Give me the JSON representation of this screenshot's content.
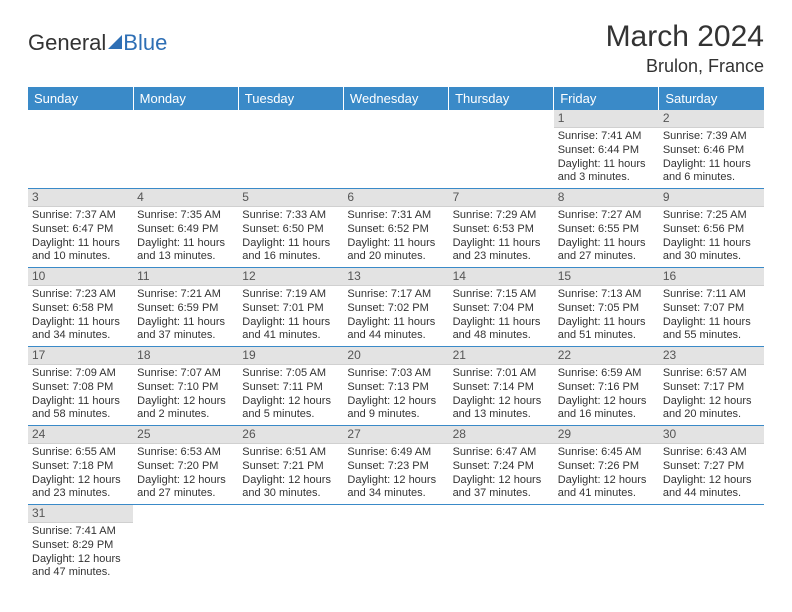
{
  "logo": {
    "part1": "General",
    "part2": "Blue"
  },
  "title": "March 2024",
  "location": "Brulon, France",
  "colors": {
    "headerBg": "#3a8ac8",
    "headerText": "#ffffff",
    "dayNumBg": "#e3e3e3",
    "rowBorder": "#3a8ac8",
    "brandBlue": "#2e6fb5",
    "text": "#333333"
  },
  "weekdays": [
    "Sunday",
    "Monday",
    "Tuesday",
    "Wednesday",
    "Thursday",
    "Friday",
    "Saturday"
  ],
  "weeks": [
    [
      null,
      null,
      null,
      null,
      null,
      {
        "n": "1",
        "sr": "Sunrise: 7:41 AM",
        "ss": "Sunset: 6:44 PM",
        "d1": "Daylight: 11 hours",
        "d2": "and 3 minutes."
      },
      {
        "n": "2",
        "sr": "Sunrise: 7:39 AM",
        "ss": "Sunset: 6:46 PM",
        "d1": "Daylight: 11 hours",
        "d2": "and 6 minutes."
      }
    ],
    [
      {
        "n": "3",
        "sr": "Sunrise: 7:37 AM",
        "ss": "Sunset: 6:47 PM",
        "d1": "Daylight: 11 hours",
        "d2": "and 10 minutes."
      },
      {
        "n": "4",
        "sr": "Sunrise: 7:35 AM",
        "ss": "Sunset: 6:49 PM",
        "d1": "Daylight: 11 hours",
        "d2": "and 13 minutes."
      },
      {
        "n": "5",
        "sr": "Sunrise: 7:33 AM",
        "ss": "Sunset: 6:50 PM",
        "d1": "Daylight: 11 hours",
        "d2": "and 16 minutes."
      },
      {
        "n": "6",
        "sr": "Sunrise: 7:31 AM",
        "ss": "Sunset: 6:52 PM",
        "d1": "Daylight: 11 hours",
        "d2": "and 20 minutes."
      },
      {
        "n": "7",
        "sr": "Sunrise: 7:29 AM",
        "ss": "Sunset: 6:53 PM",
        "d1": "Daylight: 11 hours",
        "d2": "and 23 minutes."
      },
      {
        "n": "8",
        "sr": "Sunrise: 7:27 AM",
        "ss": "Sunset: 6:55 PM",
        "d1": "Daylight: 11 hours",
        "d2": "and 27 minutes."
      },
      {
        "n": "9",
        "sr": "Sunrise: 7:25 AM",
        "ss": "Sunset: 6:56 PM",
        "d1": "Daylight: 11 hours",
        "d2": "and 30 minutes."
      }
    ],
    [
      {
        "n": "10",
        "sr": "Sunrise: 7:23 AM",
        "ss": "Sunset: 6:58 PM",
        "d1": "Daylight: 11 hours",
        "d2": "and 34 minutes."
      },
      {
        "n": "11",
        "sr": "Sunrise: 7:21 AM",
        "ss": "Sunset: 6:59 PM",
        "d1": "Daylight: 11 hours",
        "d2": "and 37 minutes."
      },
      {
        "n": "12",
        "sr": "Sunrise: 7:19 AM",
        "ss": "Sunset: 7:01 PM",
        "d1": "Daylight: 11 hours",
        "d2": "and 41 minutes."
      },
      {
        "n": "13",
        "sr": "Sunrise: 7:17 AM",
        "ss": "Sunset: 7:02 PM",
        "d1": "Daylight: 11 hours",
        "d2": "and 44 minutes."
      },
      {
        "n": "14",
        "sr": "Sunrise: 7:15 AM",
        "ss": "Sunset: 7:04 PM",
        "d1": "Daylight: 11 hours",
        "d2": "and 48 minutes."
      },
      {
        "n": "15",
        "sr": "Sunrise: 7:13 AM",
        "ss": "Sunset: 7:05 PM",
        "d1": "Daylight: 11 hours",
        "d2": "and 51 minutes."
      },
      {
        "n": "16",
        "sr": "Sunrise: 7:11 AM",
        "ss": "Sunset: 7:07 PM",
        "d1": "Daylight: 11 hours",
        "d2": "and 55 minutes."
      }
    ],
    [
      {
        "n": "17",
        "sr": "Sunrise: 7:09 AM",
        "ss": "Sunset: 7:08 PM",
        "d1": "Daylight: 11 hours",
        "d2": "and 58 minutes."
      },
      {
        "n": "18",
        "sr": "Sunrise: 7:07 AM",
        "ss": "Sunset: 7:10 PM",
        "d1": "Daylight: 12 hours",
        "d2": "and 2 minutes."
      },
      {
        "n": "19",
        "sr": "Sunrise: 7:05 AM",
        "ss": "Sunset: 7:11 PM",
        "d1": "Daylight: 12 hours",
        "d2": "and 5 minutes."
      },
      {
        "n": "20",
        "sr": "Sunrise: 7:03 AM",
        "ss": "Sunset: 7:13 PM",
        "d1": "Daylight: 12 hours",
        "d2": "and 9 minutes."
      },
      {
        "n": "21",
        "sr": "Sunrise: 7:01 AM",
        "ss": "Sunset: 7:14 PM",
        "d1": "Daylight: 12 hours",
        "d2": "and 13 minutes."
      },
      {
        "n": "22",
        "sr": "Sunrise: 6:59 AM",
        "ss": "Sunset: 7:16 PM",
        "d1": "Daylight: 12 hours",
        "d2": "and 16 minutes."
      },
      {
        "n": "23",
        "sr": "Sunrise: 6:57 AM",
        "ss": "Sunset: 7:17 PM",
        "d1": "Daylight: 12 hours",
        "d2": "and 20 minutes."
      }
    ],
    [
      {
        "n": "24",
        "sr": "Sunrise: 6:55 AM",
        "ss": "Sunset: 7:18 PM",
        "d1": "Daylight: 12 hours",
        "d2": "and 23 minutes."
      },
      {
        "n": "25",
        "sr": "Sunrise: 6:53 AM",
        "ss": "Sunset: 7:20 PM",
        "d1": "Daylight: 12 hours",
        "d2": "and 27 minutes."
      },
      {
        "n": "26",
        "sr": "Sunrise: 6:51 AM",
        "ss": "Sunset: 7:21 PM",
        "d1": "Daylight: 12 hours",
        "d2": "and 30 minutes."
      },
      {
        "n": "27",
        "sr": "Sunrise: 6:49 AM",
        "ss": "Sunset: 7:23 PM",
        "d1": "Daylight: 12 hours",
        "d2": "and 34 minutes."
      },
      {
        "n": "28",
        "sr": "Sunrise: 6:47 AM",
        "ss": "Sunset: 7:24 PM",
        "d1": "Daylight: 12 hours",
        "d2": "and 37 minutes."
      },
      {
        "n": "29",
        "sr": "Sunrise: 6:45 AM",
        "ss": "Sunset: 7:26 PM",
        "d1": "Daylight: 12 hours",
        "d2": "and 41 minutes."
      },
      {
        "n": "30",
        "sr": "Sunrise: 6:43 AM",
        "ss": "Sunset: 7:27 PM",
        "d1": "Daylight: 12 hours",
        "d2": "and 44 minutes."
      }
    ],
    [
      {
        "n": "31",
        "sr": "Sunrise: 7:41 AM",
        "ss": "Sunset: 8:29 PM",
        "d1": "Daylight: 12 hours",
        "d2": "and 47 minutes."
      },
      null,
      null,
      null,
      null,
      null,
      null
    ]
  ]
}
